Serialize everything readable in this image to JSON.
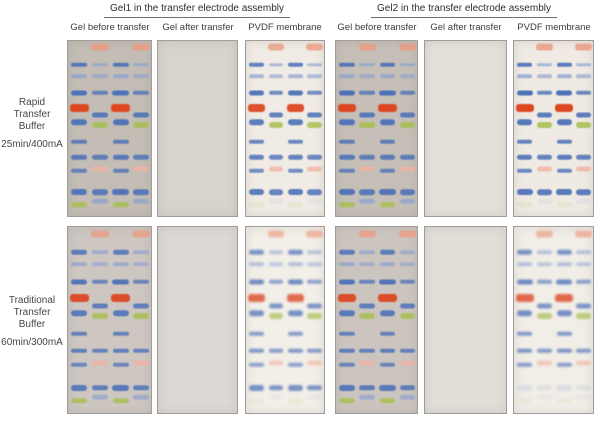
{
  "titles": {
    "group1": "Gel1 in the transfer electrode assembly",
    "group2": "Gel2 in the transfer electrode assembly"
  },
  "column_headers": [
    "Gel before transfer",
    "Gel after transfer",
    "PVDF membrane"
  ],
  "row_labels": [
    {
      "line1": "Rapid",
      "line2": "Transfer Buffer",
      "line3": "25min/400mA"
    },
    {
      "line1": "Traditional",
      "line2": "Transfer Buffer",
      "line3": "60min/300mA"
    }
  ],
  "colors": {
    "blue": "#4e72b8",
    "blueLight": "#8ba1d0",
    "red": "#dd4823",
    "green": "#a9bf54",
    "salmon": "#eb9d83",
    "pink": "#f1b2a3"
  },
  "markers": {
    "lane_centers": [
      13.5,
      38.5,
      63.5,
      88
    ],
    "lane_width": 19,
    "patterns": {
      "A": [
        {
          "p": 13.5,
          "c": "blue",
          "h": 4.5,
          "o": 0.92
        },
        {
          "p": 20,
          "c": "blueLight",
          "h": 3.5,
          "o": 0.75
        },
        {
          "p": 29.5,
          "c": "blue",
          "h": 5,
          "o": 1,
          "w": 1.05
        },
        {
          "p": 38,
          "c": "red",
          "h": 8,
          "o": 1,
          "w": 1.2
        },
        {
          "p": 46.5,
          "c": "blue",
          "h": 5.5,
          "o": 0.95
        },
        {
          "p": 57.5,
          "c": "blue",
          "h": 4.5,
          "o": 0.85
        },
        {
          "p": 66.5,
          "c": "blue",
          "h": 4.5,
          "o": 0.9
        },
        {
          "p": 74,
          "c": "blue",
          "h": 4.5,
          "o": 0.8
        },
        {
          "p": 86.5,
          "c": "blue",
          "h": 6,
          "o": 0.95,
          "w": 1.05
        },
        {
          "p": 93.5,
          "c": "green",
          "h": 5.5,
          "o": 0.9
        }
      ],
      "B": [
        {
          "p": 3.5,
          "c": "salmon",
          "h": 7,
          "o": 0.85,
          "w": 1.1
        },
        {
          "p": 13.5,
          "c": "blueLight",
          "h": 3.5,
          "o": 0.7
        },
        {
          "p": 20,
          "c": "blueLight",
          "h": 3.5,
          "o": 0.65
        },
        {
          "p": 29.5,
          "c": "blue",
          "h": 4.5,
          "o": 0.8
        },
        {
          "p": 42.5,
          "c": "blue",
          "h": 5,
          "o": 0.9
        },
        {
          "p": 48,
          "c": "green",
          "h": 6,
          "o": 0.9
        },
        {
          "p": 66.5,
          "c": "blue",
          "h": 4.5,
          "o": 0.85
        },
        {
          "p": 73,
          "c": "pink",
          "h": 5,
          "o": 0.8
        },
        {
          "p": 86.5,
          "c": "blue",
          "h": 5.5,
          "o": 0.9
        },
        {
          "p": 91.5,
          "c": "blueLight",
          "h": 4.5,
          "o": 0.7
        }
      ]
    }
  },
  "panels": [
    {
      "id": "rapid-gel1-before",
      "row": 1,
      "col": 1,
      "bg": "#c3bdb5",
      "lanes": [
        "A",
        "B",
        "A",
        "B"
      ],
      "band_opacity": 1,
      "blur": 0.5
    },
    {
      "id": "rapid-gel1-after",
      "row": 1,
      "col": 2,
      "bg": "#d7d3cd",
      "streak": true
    },
    {
      "id": "rapid-gel1-pvdf",
      "row": 1,
      "col": 3,
      "bg": "#f0ebe4",
      "lanes": [
        "A",
        "B",
        "A",
        "B"
      ],
      "band_opacity": 0.95,
      "blur": 0.6,
      "fade_after": 90
    },
    {
      "id": "rapid-gel2-before",
      "row": 1,
      "col": 4,
      "bg": "#c5bfb7",
      "lanes": [
        "A",
        "B",
        "A",
        "B"
      ],
      "band_opacity": 1,
      "blur": 0.5
    },
    {
      "id": "rapid-gel2-after",
      "row": 1,
      "col": 5,
      "bg": "#e3e0da",
      "streak": true
    },
    {
      "id": "rapid-gel2-pvdf",
      "row": 1,
      "col": 6,
      "bg": "#efeae3",
      "lanes": [
        "A",
        "B",
        "A",
        "B"
      ],
      "band_opacity": 1,
      "blur": 0.5,
      "fade_after": 90
    },
    {
      "id": "trad-gel1-before",
      "row": 2,
      "col": 1,
      "bg": "#cec7c1",
      "lanes": [
        "A",
        "B",
        "A",
        "B"
      ],
      "band_opacity": 0.95,
      "blur": 0.6
    },
    {
      "id": "trad-gel1-after",
      "row": 2,
      "col": 2,
      "bg": "#dcd8d3",
      "speckle": true
    },
    {
      "id": "trad-gel1-pvdf",
      "row": 2,
      "col": 3,
      "bg": "#f2eee8",
      "lanes": [
        "A",
        "B",
        "A",
        "B"
      ],
      "band_opacity": 0.78,
      "blur": 1.1,
      "fade_after": 90
    },
    {
      "id": "trad-gel2-before",
      "row": 2,
      "col": 4,
      "bg": "#ccc5bf",
      "lanes": [
        "A",
        "B",
        "A",
        "B"
      ],
      "band_opacity": 0.95,
      "blur": 0.6
    },
    {
      "id": "trad-gel2-after",
      "row": 2,
      "col": 5,
      "bg": "#e1ded8",
      "speckle": true
    },
    {
      "id": "trad-gel2-pvdf",
      "row": 2,
      "col": 6,
      "bg": "#f1ede7",
      "lanes": [
        "A",
        "B",
        "A",
        "B"
      ],
      "band_opacity": 0.8,
      "blur": 1.1,
      "fade_after": 85
    }
  ]
}
